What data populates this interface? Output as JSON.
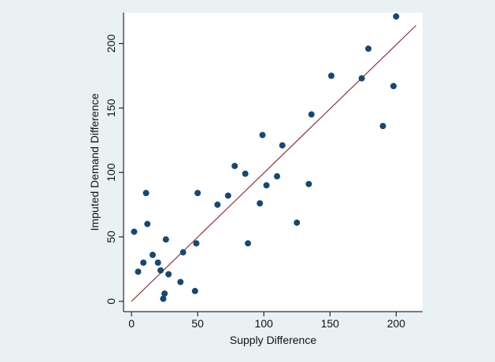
{
  "chart_data": {
    "type": "scatter",
    "title": "",
    "xlabel": "Supply Difference",
    "ylabel": "Imputed Demand Difference",
    "xlim": [
      -6,
      220
    ],
    "ylim": [
      -8,
      224
    ],
    "xticks": [
      0,
      50,
      100,
      150,
      200
    ],
    "yticks": [
      0,
      50,
      100,
      150,
      200
    ],
    "grid": false,
    "legend": "none",
    "colors": {
      "background": "#eaf1f3",
      "plot_background": "#ffffff",
      "marker": "#1a476f",
      "fit_line": "#90353b",
      "axis": "#000000"
    },
    "series": [
      {
        "type": "scatter",
        "points": [
          {
            "x": 2,
            "y": 54
          },
          {
            "x": 5,
            "y": 23
          },
          {
            "x": 9,
            "y": 30
          },
          {
            "x": 11,
            "y": 84
          },
          {
            "x": 12,
            "y": 60
          },
          {
            "x": 16,
            "y": 36
          },
          {
            "x": 20,
            "y": 30
          },
          {
            "x": 22,
            "y": 24
          },
          {
            "x": 24,
            "y": 2
          },
          {
            "x": 25,
            "y": 6
          },
          {
            "x": 26,
            "y": 48
          },
          {
            "x": 28,
            "y": 21
          },
          {
            "x": 37,
            "y": 15
          },
          {
            "x": 39,
            "y": 38
          },
          {
            "x": 48,
            "y": 8
          },
          {
            "x": 49,
            "y": 45
          },
          {
            "x": 50,
            "y": 84
          },
          {
            "x": 65,
            "y": 75
          },
          {
            "x": 73,
            "y": 82
          },
          {
            "x": 78,
            "y": 105
          },
          {
            "x": 86,
            "y": 99
          },
          {
            "x": 88,
            "y": 45
          },
          {
            "x": 97,
            "y": 76
          },
          {
            "x": 99,
            "y": 129
          },
          {
            "x": 102,
            "y": 90
          },
          {
            "x": 110,
            "y": 97
          },
          {
            "x": 114,
            "y": 121
          },
          {
            "x": 125,
            "y": 61
          },
          {
            "x": 134,
            "y": 91
          },
          {
            "x": 136,
            "y": 145
          },
          {
            "x": 151,
            "y": 175
          },
          {
            "x": 174,
            "y": 173
          },
          {
            "x": 179,
            "y": 196
          },
          {
            "x": 190,
            "y": 136
          },
          {
            "x": 198,
            "y": 167
          },
          {
            "x": 200,
            "y": 221
          }
        ]
      },
      {
        "type": "line",
        "points": [
          {
            "x": 0,
            "y": 0
          },
          {
            "x": 215,
            "y": 214
          }
        ]
      }
    ]
  }
}
